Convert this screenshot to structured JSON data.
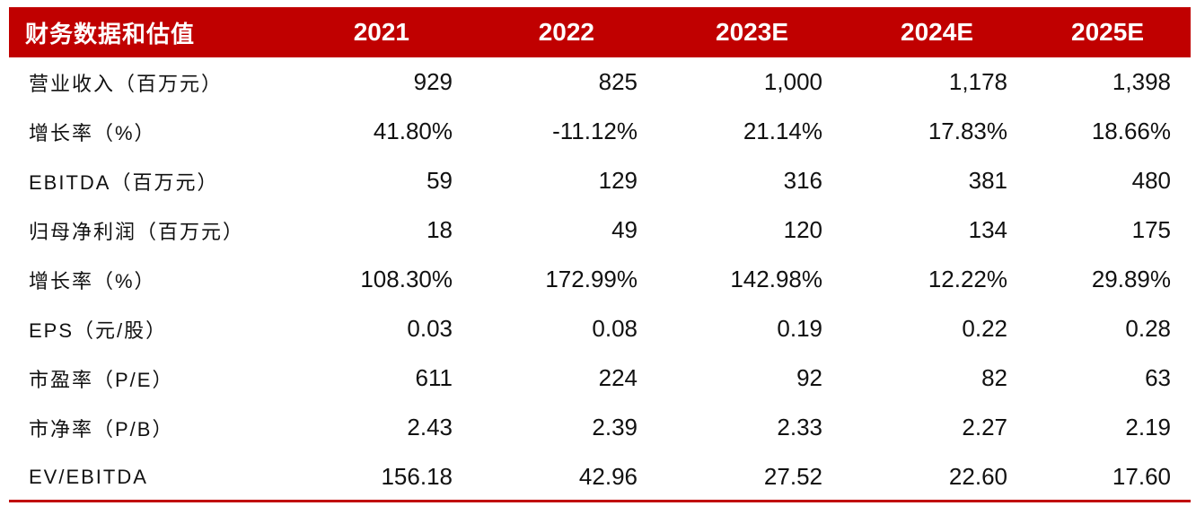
{
  "table": {
    "header": {
      "label": "财务数据和估值",
      "years": [
        "2021",
        "2022",
        "2023E",
        "2024E",
        "2025E"
      ]
    },
    "rows": [
      {
        "label": "营业收入（百万元）",
        "values": [
          "929",
          "825",
          "1,000",
          "1,178",
          "1,398"
        ]
      },
      {
        "label": "增长率（%）",
        "values": [
          "41.80%",
          "-11.12%",
          "21.14%",
          "17.83%",
          "18.66%"
        ]
      },
      {
        "label": "EBITDA（百万元）",
        "values": [
          "59",
          "129",
          "316",
          "381",
          "480"
        ]
      },
      {
        "label": "归母净利润（百万元）",
        "values": [
          "18",
          "49",
          "120",
          "134",
          "175"
        ]
      },
      {
        "label": "增长率（%）",
        "values": [
          "108.30%",
          "172.99%",
          "142.98%",
          "12.22%",
          "29.89%"
        ]
      },
      {
        "label": "EPS（元/股）",
        "values": [
          "0.03",
          "0.08",
          "0.19",
          "0.22",
          "0.28"
        ]
      },
      {
        "label": "市盈率（P/E）",
        "values": [
          "611",
          "224",
          "92",
          "82",
          "63"
        ]
      },
      {
        "label": "市净率（P/B）",
        "values": [
          "2.43",
          "2.39",
          "2.33",
          "2.27",
          "2.19"
        ]
      },
      {
        "label": "EV/EBITDA",
        "values": [
          "156.18",
          "42.96",
          "27.52",
          "22.60",
          "17.60"
        ]
      }
    ]
  },
  "colors": {
    "header_bg": "#c00000",
    "header_text": "#ffffff",
    "body_text": "#111111"
  }
}
